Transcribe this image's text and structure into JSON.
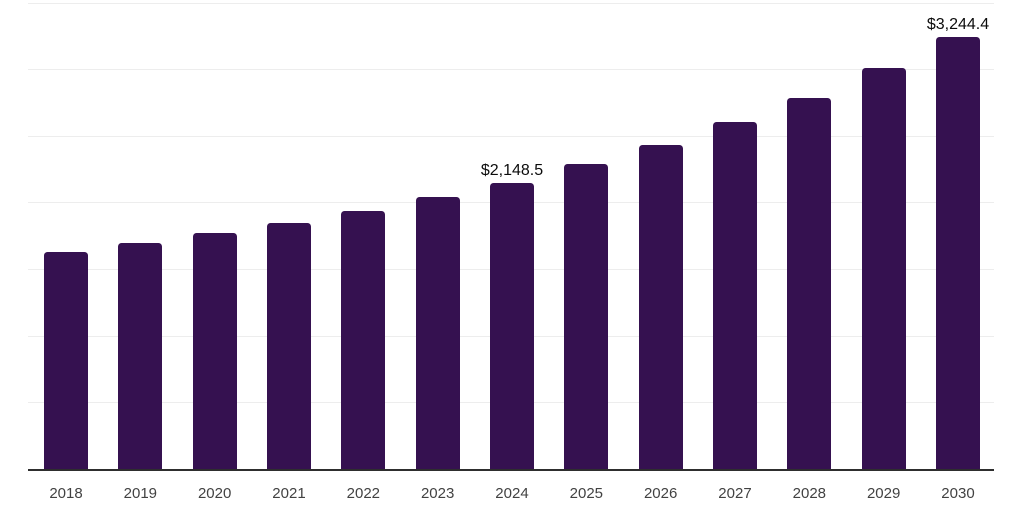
{
  "chart": {
    "background_color": "#ffffff",
    "bar_color": "#351150",
    "grid_color": "#ededed",
    "axis_color": "#2e2e2e",
    "tick_color": "#424242",
    "data_label_color": "#0c0c0c"
  },
  "chart_data": {
    "type": "bar",
    "title": "",
    "xlabel": "",
    "ylabel": "",
    "categories": [
      "2018",
      "2019",
      "2020",
      "2021",
      "2022",
      "2023",
      "2024",
      "2025",
      "2026",
      "2027",
      "2028",
      "2029",
      "2030"
    ],
    "values": [
      1630,
      1695,
      1770,
      1845,
      1935,
      2040,
      2148.5,
      2290,
      2430,
      2605,
      2785,
      3010,
      3244.4
    ],
    "data_labels": [
      {
        "category": "2024",
        "text": "$2,148.5"
      },
      {
        "category": "2030",
        "text": "$3,244.4"
      }
    ],
    "ylim": [
      0,
      3500
    ],
    "gridline_step": 500,
    "grid": "horizontal",
    "y_tick_labels_visible": false,
    "legend": "none"
  }
}
